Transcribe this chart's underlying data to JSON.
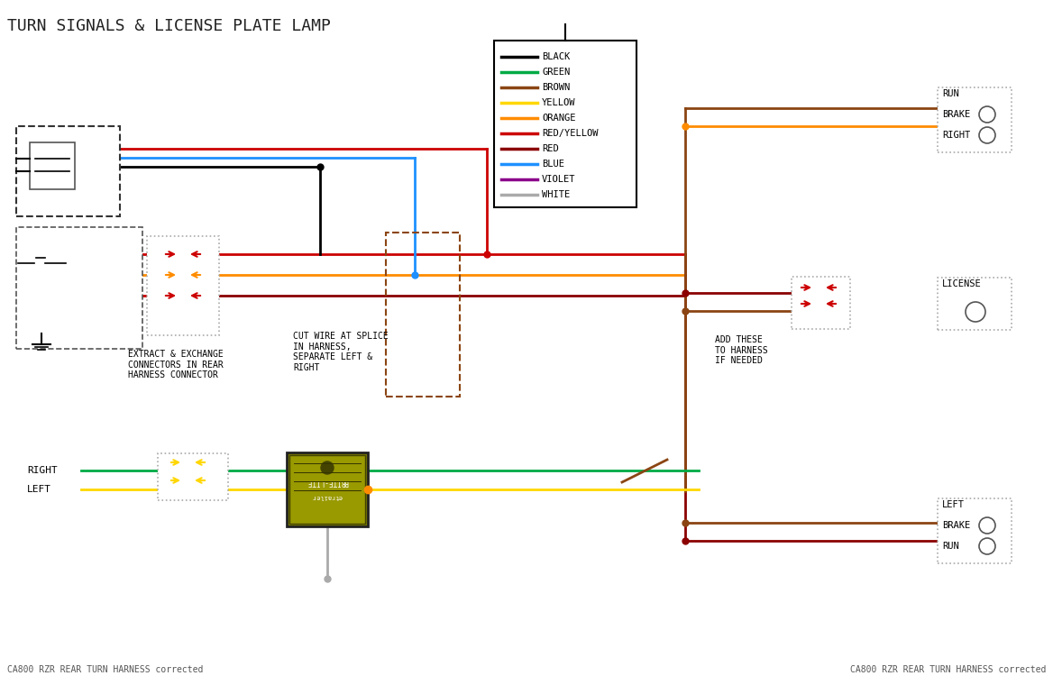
{
  "title": "TURN SIGNALS & LICENSE PLATE LAMP",
  "footer_left": "CA800 RZR REAR TURN HARNESS corrected",
  "footer_right": "CA800 RZR REAR TURN HARNESS corrected",
  "bg_color": "#ffffff",
  "legend_items": [
    {
      "label": "BLACK",
      "color": "#000000"
    },
    {
      "label": "GREEN",
      "color": "#00aa44"
    },
    {
      "label": "BROWN",
      "color": "#8B4513"
    },
    {
      "label": "YELLOW",
      "color": "#FFD700"
    },
    {
      "label": "ORANGE",
      "color": "#FF8C00"
    },
    {
      "label": "RED/YELLOW",
      "color": "#cc0000"
    },
    {
      "label": "RED",
      "color": "#8B0000"
    },
    {
      "label": "BLUE",
      "color": "#1E90FF"
    },
    {
      "label": "VIOLET",
      "color": "#8B008B"
    },
    {
      "label": "WHITE",
      "color": "#aaaaaa"
    }
  ],
  "colors": {
    "black": "#000000",
    "green": "#00aa44",
    "brown": "#8B4513",
    "yellow": "#FFD700",
    "orange": "#FF8C00",
    "red_yellow": "#cc0000",
    "red": "#8B0000",
    "blue": "#1E90FF",
    "violet": "#8B008B",
    "white": "#aaaaaa"
  }
}
